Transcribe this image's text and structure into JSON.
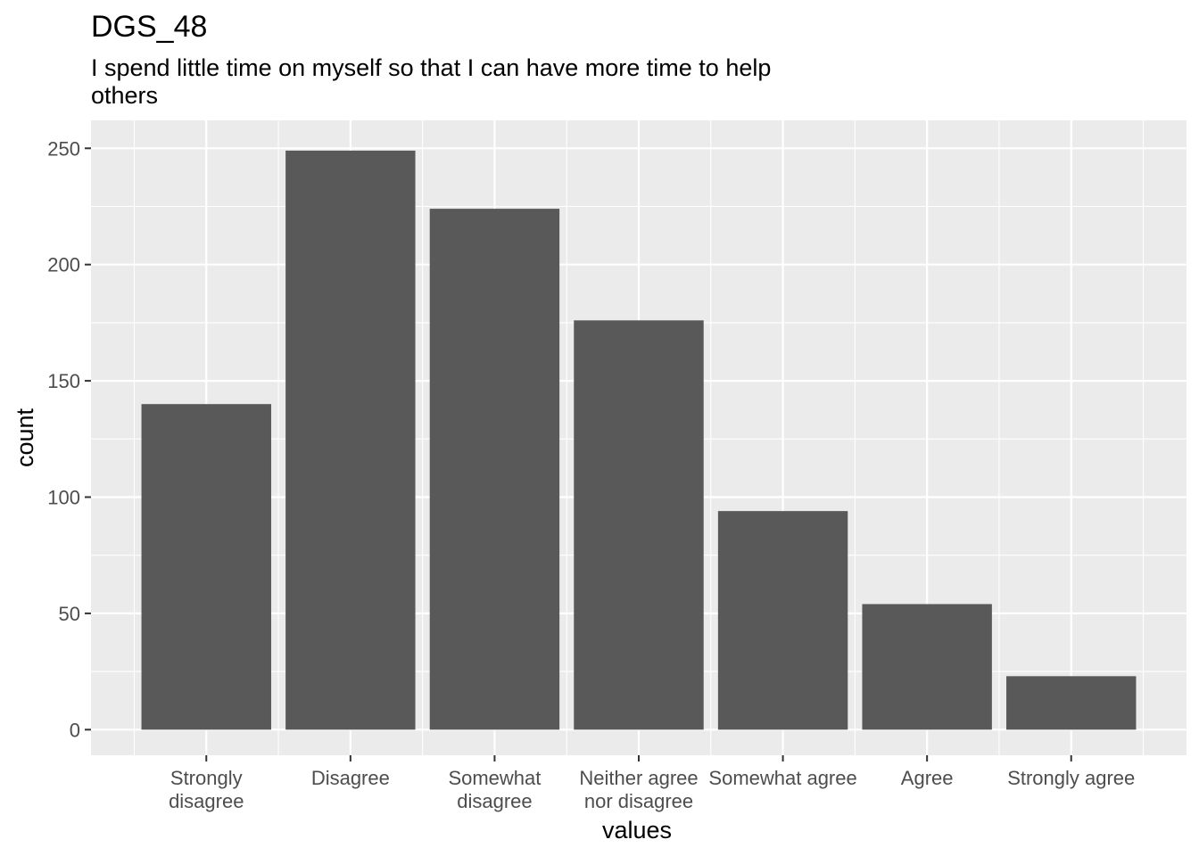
{
  "chart_data": {
    "type": "bar",
    "title": "DGS_48",
    "subtitle_lines": [
      "I spend little time on myself so that I can have more time to help",
      "others"
    ],
    "xlabel": "values",
    "ylabel": "count",
    "categories": [
      [
        "Strongly",
        "disagree"
      ],
      [
        "Disagree"
      ],
      [
        "Somewhat",
        "disagree"
      ],
      [
        "Neither agree",
        "nor disagree"
      ],
      [
        "Somewhat agree"
      ],
      [
        "Agree"
      ],
      [
        "Strongly agree"
      ]
    ],
    "values": [
      140,
      249,
      224,
      176,
      94,
      54,
      23
    ],
    "yticks": [
      0,
      50,
      100,
      150,
      200,
      250
    ],
    "ylim": [
      -11,
      262
    ],
    "grid": true,
    "colors": {
      "bar": "#595959",
      "panel": "#ebebeb",
      "grid": "#ffffff"
    }
  }
}
